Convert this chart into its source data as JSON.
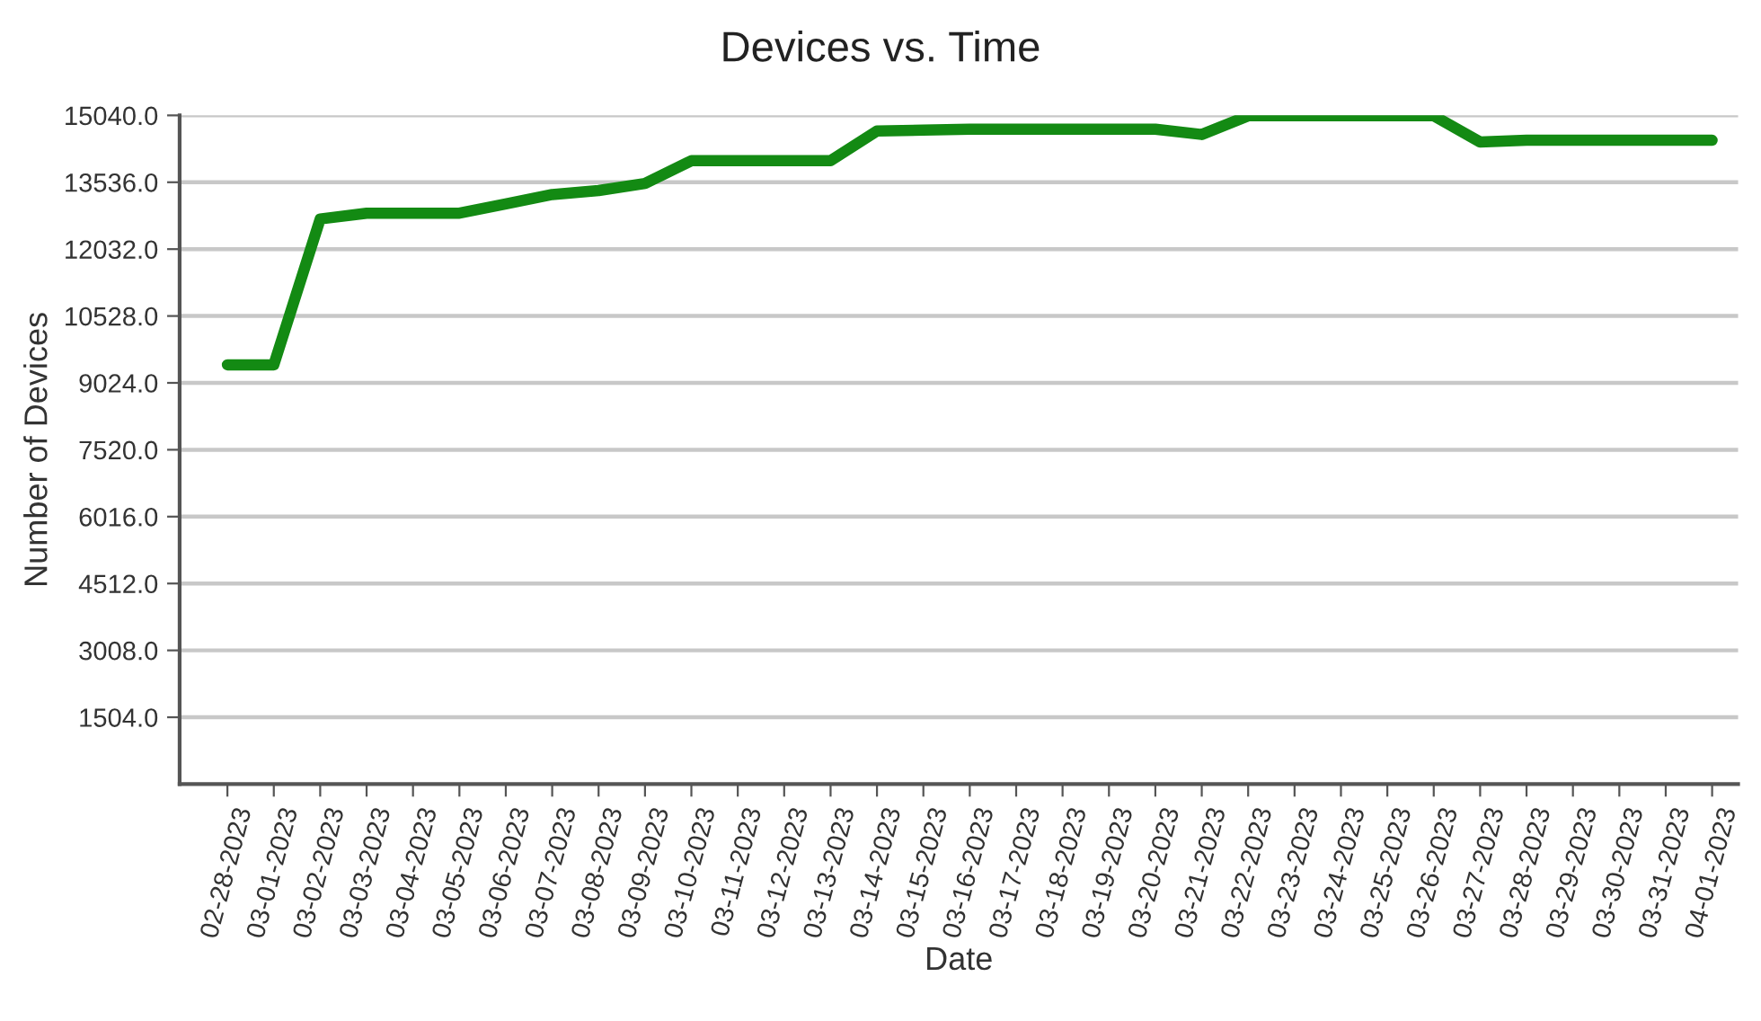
{
  "chart_data": {
    "type": "line",
    "title": "Devices vs. Time",
    "xlabel": "Date",
    "ylabel": "Number of Devices",
    "categories": [
      "02-28-2023",
      "03-01-2023",
      "03-02-2023",
      "03-03-2023",
      "03-04-2023",
      "03-05-2023",
      "03-06-2023",
      "03-07-2023",
      "03-08-2023",
      "03-09-2023",
      "03-10-2023",
      "03-11-2023",
      "03-12-2023",
      "03-13-2023",
      "03-14-2023",
      "03-15-2023",
      "03-16-2023",
      "03-17-2023",
      "03-18-2023",
      "03-19-2023",
      "03-20-2023",
      "03-21-2023",
      "03-22-2023",
      "03-23-2023",
      "03-24-2023",
      "03-25-2023",
      "03-26-2023",
      "03-27-2023",
      "03-28-2023",
      "03-29-2023",
      "03-30-2023",
      "03-31-2023",
      "04-01-2023"
    ],
    "series": [
      {
        "color": "#138a13",
        "values": [
          9430,
          9430,
          12710,
          12840,
          12840,
          12840,
          13050,
          13260,
          13350,
          13510,
          14020,
          14020,
          14020,
          14020,
          14690,
          14710,
          14730,
          14730,
          14730,
          14730,
          14730,
          14610,
          15030,
          15030,
          15030,
          15030,
          15030,
          14440,
          14480,
          14480,
          14480,
          14480,
          14480
        ]
      }
    ],
    "ylim": [
      0,
      15040
    ],
    "yticks": [
      {
        "value": 1504,
        "label": "1504.0"
      },
      {
        "value": 3008,
        "label": "3008.0"
      },
      {
        "value": 4512,
        "label": "4512.0"
      },
      {
        "value": 6016,
        "label": "6016.0"
      },
      {
        "value": 7520,
        "label": "7520.0"
      },
      {
        "value": 9024,
        "label": "9024.0"
      },
      {
        "value": 10528,
        "label": "10528.0"
      },
      {
        "value": 12032,
        "label": "12032.0"
      },
      {
        "value": 13536,
        "label": "13536.0"
      },
      {
        "value": 15040,
        "label": "15040.0"
      }
    ],
    "grid": "y",
    "marker": "none",
    "line_style": "solid"
  }
}
